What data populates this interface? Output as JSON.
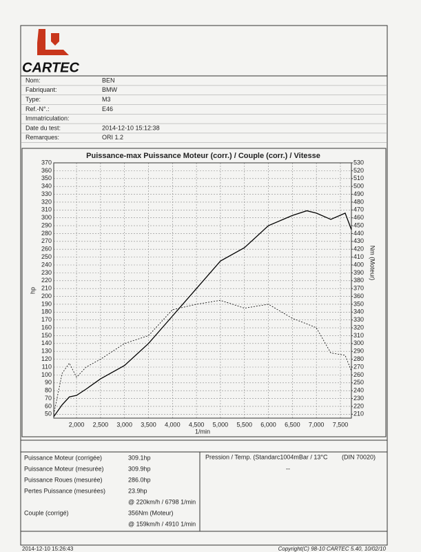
{
  "logo": {
    "text": "CARTEC"
  },
  "fields": [
    {
      "label": "Nom:",
      "value": "BEN"
    },
    {
      "label": "Fabriquant:",
      "value": "BMW"
    },
    {
      "label": "Type:",
      "value": "M3"
    },
    {
      "label": "Ref.-N°.:",
      "value": "E46"
    },
    {
      "label": "Immatriculation:"
    },
    {
      "label": "Date du test:",
      "value": "2014-12-10 15:12:38"
    },
    {
      "label": "Remarques:",
      "value": "ORI 1.2"
    }
  ],
  "chart_data": {
    "type": "line",
    "title": "Puissance-max Puissance Moteur (corr.) / Couple (corr.) / Vitesse",
    "y_label": "hp",
    "y2_label": "Nm (Moteur)",
    "x_label": "1/min",
    "x": [
      1525,
      1700,
      1850,
      2000,
      2200,
      2500,
      3000,
      3500,
      4000,
      4500,
      5000,
      5500,
      6000,
      6500,
      6800,
      7000,
      7300,
      7600,
      7730
    ],
    "series": [
      {
        "color": "#000000",
        "values": [
          47,
          62,
          72,
          74,
          82,
          95,
          112,
          140,
          175,
          210,
          245,
          262,
          290,
          303,
          309,
          306,
          298,
          306,
          285
        ]
      },
      {
        "color": "#000000",
        "axis": "y2",
        "dashed": true,
        "values": [
          210,
          262,
          275,
          257,
          270,
          280,
          300,
          310,
          343,
          350,
          355,
          345,
          350,
          332,
          325,
          320,
          288,
          285,
          265
        ]
      }
    ],
    "xlim": [
      1525,
      7730
    ],
    "xticks": [
      {
        "value": 2000,
        "label": "2,000"
      },
      {
        "value": 2500,
        "label": "2,500"
      },
      {
        "value": 3000,
        "label": "3,000"
      },
      {
        "value": 3500,
        "label": "3,500"
      },
      {
        "value": 4000,
        "label": "4,000"
      },
      {
        "value": 4500,
        "label": "4,500"
      },
      {
        "value": 5000,
        "label": "5,000"
      },
      {
        "value": 5500,
        "label": "5,500"
      },
      {
        "value": 6000,
        "label": "6,000"
      },
      {
        "value": 6500,
        "label": "6,500"
      },
      {
        "value": 7000,
        "label": "7,000"
      },
      {
        "value": 7500,
        "label": "7,500"
      }
    ],
    "ylim": [
      45,
      370
    ],
    "yticks": [
      50,
      60,
      70,
      80,
      90,
      100,
      110,
      120,
      130,
      140,
      150,
      160,
      170,
      180,
      190,
      200,
      210,
      220,
      230,
      240,
      250,
      260,
      270,
      280,
      290,
      300,
      310,
      320,
      330,
      340,
      350,
      360,
      370
    ],
    "y2lim": [
      205,
      530
    ],
    "y2ticks": [
      210,
      220,
      230,
      240,
      250,
      260,
      270,
      280,
      290,
      300,
      310,
      320,
      330,
      340,
      350,
      360,
      370,
      380,
      390,
      400,
      410,
      420,
      430,
      440,
      450,
      460,
      470,
      480,
      490,
      500,
      510,
      520,
      530
    ],
    "grid": true
  },
  "results": [
    {
      "label": "Puissance Moteur (corrigée)",
      "value": "309.1hp"
    },
    {
      "label": "Puissance Moteur (mesurée)",
      "value": "309.9hp"
    },
    {
      "label": "Puissance Roues (mesurée)",
      "value": "286.0hp"
    },
    {
      "label": "Pertes Puissance (mesurées)",
      "value": "23.9hp"
    },
    {
      "value": "@ 220km/h / 6798 1/min"
    },
    {
      "label": "Couple (corrigé)",
      "value": "356Nm (Moteur)"
    },
    {
      "value": "@ 159km/h / 4910 1/min"
    }
  ],
  "conditions": {
    "label": "Pression / Temp. (Standarc1004mBar / 13°C",
    "norm": "(DIN 70020)",
    "value": "--"
  },
  "footer": {
    "date": "2014-12-10 15:26:43",
    "copyright": "Copyright(C) 98-10 CARTEC 5.40, 10/02/10"
  }
}
